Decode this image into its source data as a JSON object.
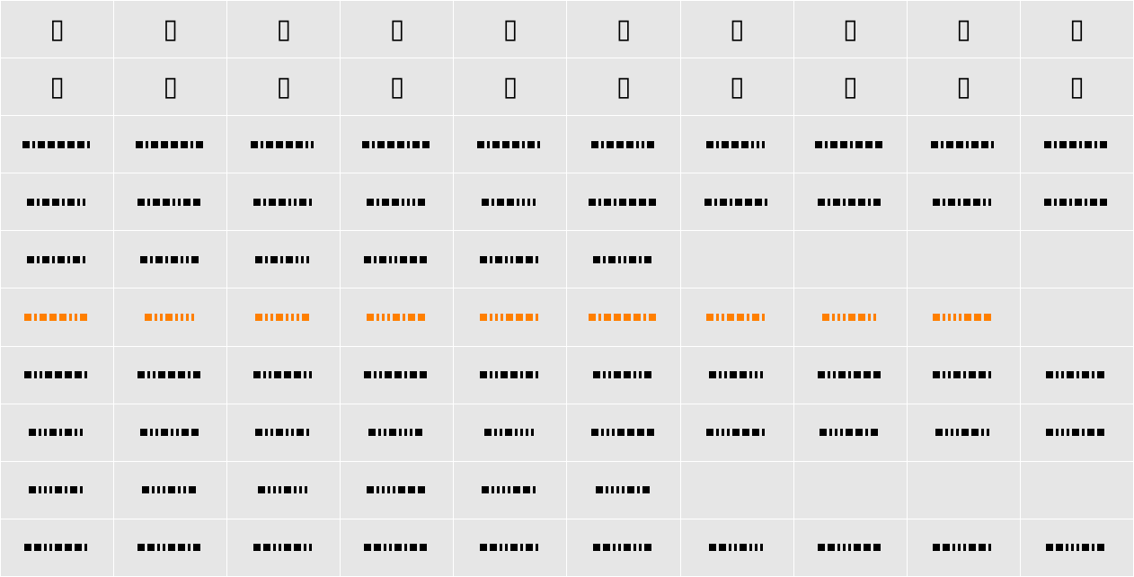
{
  "colors": {
    "cell_bg": "#e6e6e6",
    "ink": "#000000",
    "highlight": "#ff7f00"
  },
  "rows": [
    {
      "type": "glyph",
      "cells": [
        "▯",
        "▯",
        "▯",
        "▯",
        "▯",
        "▯",
        "▯",
        "▯",
        "▯",
        "▯"
      ]
    },
    {
      "type": "glyph",
      "cells": [
        "▯",
        "▯",
        "▯",
        "▯",
        "▯",
        "▯",
        "▯",
        "▯",
        "▯",
        "▯"
      ]
    },
    {
      "type": "code",
      "color": "#000000",
      "cells": [
        "WNWWWWWN",
        "WNWWWWNW",
        "WNWWWWNN",
        "WNWWWNWW",
        "WNWWWNWN",
        "WNWWWNNW",
        "WNWWWNNN",
        "WNWWNWWW",
        "WNWWNWWN",
        "WNWWNWNW"
      ]
    },
    {
      "type": "code",
      "color": "#000000",
      "cells": [
        "WNWWNWNN",
        "WNWWNNWW",
        "WNWWNNWN",
        "WNWWNNNW",
        "WNWWNNNN",
        "WNWNWWWW",
        "WNWNWWWN",
        "WNWNWWNW",
        "WNWNWWNN",
        "WNWNWNWW"
      ]
    },
    {
      "type": "code",
      "color": "#000000",
      "cells": [
        "WNWNWNWN",
        "WNWNWNNW",
        "WNWNWNNN",
        "WNWNNWWW",
        "WNWNNWWN",
        "WNWNNWNW",
        "",
        "",
        "",
        ""
      ]
    },
    {
      "type": "code",
      "color": "#ff7f00",
      "cells": [
        "WNWWWNNW",
        "WNNWNNNN",
        "WNNWNNNW",
        "WNNNWNWW",
        "WNNNWWWN",
        "WNWWWWNW",
        "WNNWWNWN",
        "WNNNWWNN",
        "WNNNNWWW",
        ""
      ]
    },
    {
      "type": "code",
      "color": "#000000",
      "cells": [
        "WNNWWWWN",
        "WNNWWWNW",
        "WNNWWWNN",
        "WNNWWNWW",
        "WNNWWNWN",
        "WNNWWNNW",
        "WNNWWNNN",
        "WNNWNWWW",
        "WNNWNWWN",
        "WNNWNWNW"
      ]
    },
    {
      "type": "code",
      "color": "#000000",
      "cells": [
        "WNNWNWNN",
        "WNNWNNWW",
        "WNNWNNWN",
        "WNNWNNNW",
        "WNNWNNNN",
        "WNNNWWWW",
        "WNNNWWWN",
        "WNNNWWNW",
        "WNNNWWNN",
        "WNNNWNWW"
      ]
    },
    {
      "type": "code",
      "color": "#000000",
      "cells": [
        "WNNNWNWN",
        "WNNNWNNW",
        "WNNNWNNN",
        "WNNNNWWW",
        "WNNNNWWN",
        "WNNNNWNW",
        "",
        "",
        "",
        ""
      ]
    },
    {
      "type": "code",
      "color": "#000000",
      "cells": [
        "WWNNWWWN",
        "WWNNWWNW",
        "WWNNWWNN",
        "WWNNWNWW",
        "WWNNWNWN",
        "WWNNWNNW",
        "WWNNWNNN",
        "WWNNNWWW",
        "WWNNNWWN",
        "WWNNNWNW"
      ]
    }
  ]
}
